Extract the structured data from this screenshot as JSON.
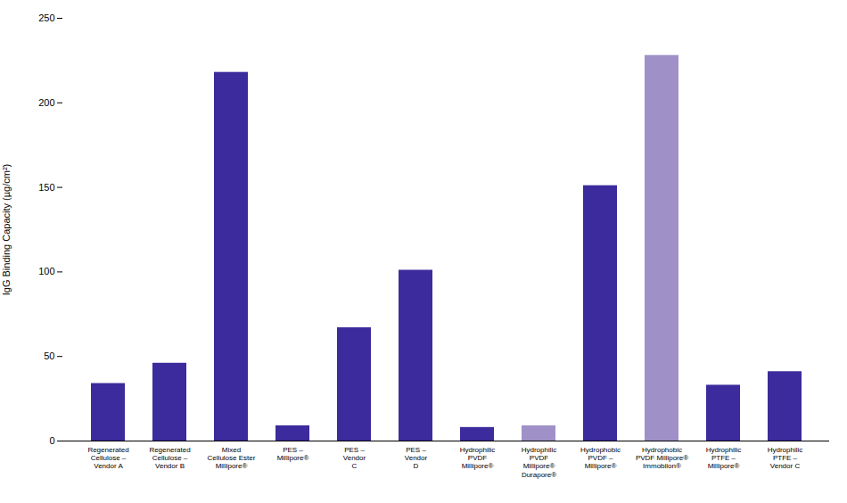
{
  "chart_data": {
    "type": "bar",
    "categories": [
      "Regenerated\nCellulose –\nVendor A",
      "Regenerated\nCellulose –\nVendor B",
      "Mixed\nCellulose Ester\nMillipore®",
      "PES –\nMillipore®",
      "PES –\nVendor\nC",
      "PES –\nVendor\nD",
      "Hydrophilic\nPVDF\nMillipore®",
      "Hydrophilic\nPVDF\nMillipore®\nDurapore®",
      "Hydrophobic\nPVDF –\nMillipore®",
      "Hydrophobic\nPVDF Millipore®\nImmobilon®",
      "Hydrophilic\nPTFE –\nMillipore®",
      "Hydrophilic\nPTFE –\nVendor C"
    ],
    "values": [
      34,
      46,
      218,
      9,
      67,
      101,
      8,
      9,
      151,
      228,
      33,
      41
    ],
    "colors": [
      "#3b2b9c",
      "#3b2b9c",
      "#3b2b9c",
      "#3b2b9c",
      "#3b2b9c",
      "#3b2b9c",
      "#3b2b9c",
      "#a090c8",
      "#3b2b9c",
      "#a090c8",
      "#3b2b9c",
      "#3b2b9c"
    ],
    "ylabel": "IgG Binding Capacity (µg/cm²)",
    "ylim": [
      0,
      250
    ],
    "yticks": [
      0,
      50,
      100,
      150,
      200,
      250
    ],
    "grid": false
  }
}
